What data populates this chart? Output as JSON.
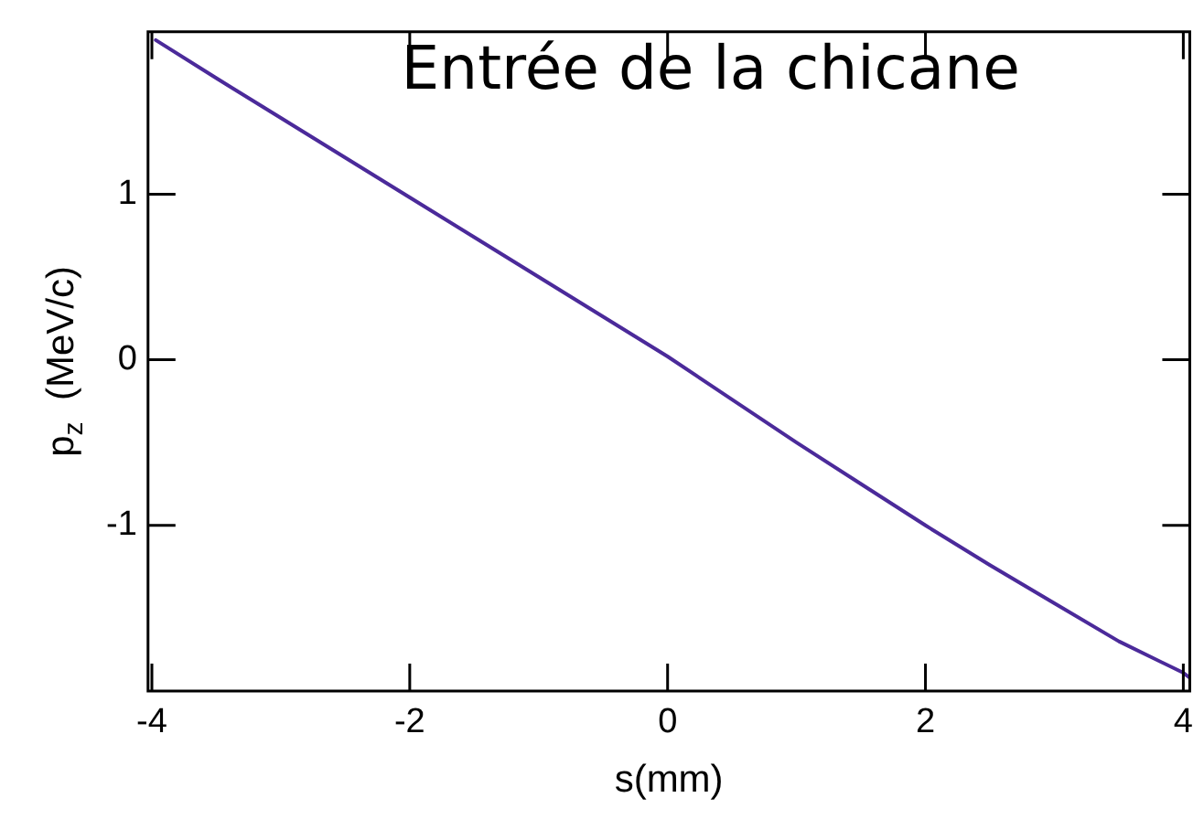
{
  "chart_data": {
    "type": "line",
    "title": "Entrée de la chicane",
    "xlabel": "s(mm)",
    "ylabel": "p$_{z}$  (MeV/c)",
    "x": [
      -3.97,
      -3.5,
      -3,
      -2.5,
      -2,
      -1.5,
      -1,
      -0.5,
      0,
      0.5,
      1,
      1.5,
      2,
      2.5,
      3,
      3.5,
      4,
      4.05
    ],
    "series": [
      {
        "color": "#4b2a9a",
        "values": [
          1.93,
          1.7,
          1.46,
          1.22,
          0.98,
          0.74,
          0.5,
          0.26,
          0.02,
          -0.24,
          -0.5,
          -0.75,
          -1.0,
          -1.24,
          -1.47,
          -1.7,
          -1.89,
          -1.92
        ]
      }
    ],
    "xlim": [
      -4.03,
      4.05
    ],
    "ylim": [
      -2.0,
      1.98
    ],
    "xticks": [
      -4,
      -2,
      0,
      2,
      4
    ],
    "yticks": [
      -1,
      0,
      1
    ],
    "grid": false,
    "legend": false,
    "marker": "none",
    "line_style": "solid"
  }
}
